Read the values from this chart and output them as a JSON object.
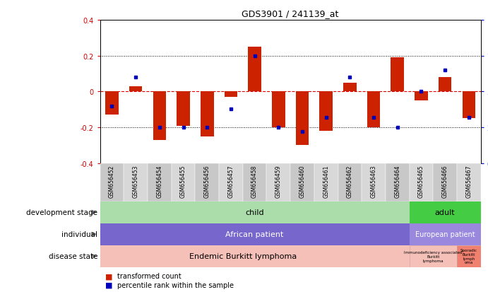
{
  "title": "GDS3901 / 241139_at",
  "samples": [
    "GSM656452",
    "GSM656453",
    "GSM656454",
    "GSM656455",
    "GSM656456",
    "GSM656457",
    "GSM656458",
    "GSM656459",
    "GSM656460",
    "GSM656461",
    "GSM656462",
    "GSM656463",
    "GSM656464",
    "GSM656465",
    "GSM656466",
    "GSM656467"
  ],
  "transformed_count": [
    -0.13,
    0.03,
    -0.27,
    -0.19,
    -0.25,
    -0.03,
    0.25,
    -0.2,
    -0.3,
    -0.22,
    0.05,
    -0.2,
    0.19,
    -0.05,
    0.08,
    -0.15
  ],
  "percentile_rank": [
    40,
    60,
    25,
    25,
    25,
    38,
    75,
    25,
    22,
    32,
    60,
    32,
    25,
    50,
    65,
    32
  ],
  "bar_color": "#cc2200",
  "dot_color": "#0000bb",
  "child_color": "#aaddaa",
  "adult_color": "#44cc44",
  "african_color": "#7766cc",
  "european_color": "#9988dd",
  "endemic_color": "#f5c0b8",
  "immunodeficiency_color": "#f5c0b8",
  "sporadic_color": "#f08070",
  "tick_box_color": "#cccccc",
  "left_tick_color": "#cc0000",
  "right_tick_color": "#0000bb"
}
